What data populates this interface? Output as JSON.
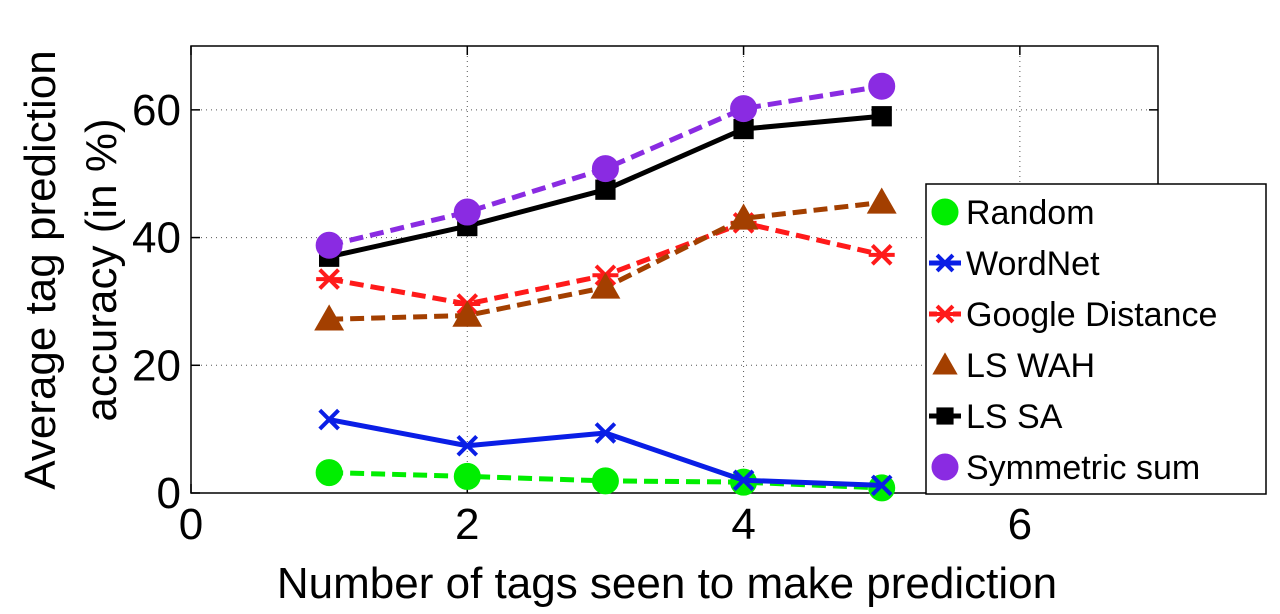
{
  "chart_data": {
    "type": "line",
    "title": "",
    "xlabel": "Number of tags seen to make prediction",
    "ylabel": [
      "Average tag prediction",
      "accuracy (in %)"
    ],
    "xlim": [
      0,
      7
    ],
    "ylim": [
      0,
      70
    ],
    "xticks": [
      0,
      2,
      4,
      6
    ],
    "yticks": [
      0,
      20,
      40,
      60
    ],
    "xtick_labels": [
      "0",
      "2",
      "4",
      "6"
    ],
    "ytick_labels": [
      "0",
      "20",
      "40",
      "60"
    ],
    "grid": true,
    "legend_position": "right-middle",
    "x": [
      1,
      2,
      3,
      4,
      5
    ],
    "series": [
      {
        "name": "Random",
        "values": [
          3.2,
          2.6,
          1.9,
          1.7,
          0.8
        ],
        "color": "#00ee00",
        "dash": true,
        "marker": "circle"
      },
      {
        "name": "WordNet",
        "values": [
          11.5,
          7.4,
          9.4,
          2.0,
          1.2
        ],
        "color": "#0a1ee6",
        "dash": false,
        "marker": "x"
      },
      {
        "name": "Google Distance",
        "values": [
          33.5,
          29.6,
          34.1,
          42.3,
          37.3
        ],
        "color": "#ff1a1a",
        "dash": true,
        "marker": "star"
      },
      {
        "name": "LS WAH",
        "values": [
          27.2,
          27.8,
          32.2,
          43.0,
          45.5
        ],
        "color": "#a33f00",
        "dash": true,
        "marker": "triangle"
      },
      {
        "name": "LS SA",
        "values": [
          37.0,
          41.8,
          47.5,
          57.0,
          59.0
        ],
        "color": "#000000",
        "dash": false,
        "marker": "square"
      },
      {
        "name": "Symmetric sum",
        "values": [
          38.8,
          44.0,
          50.8,
          60.2,
          63.7
        ],
        "color": "#8a2be2",
        "dash": true,
        "marker": "circle"
      }
    ]
  }
}
